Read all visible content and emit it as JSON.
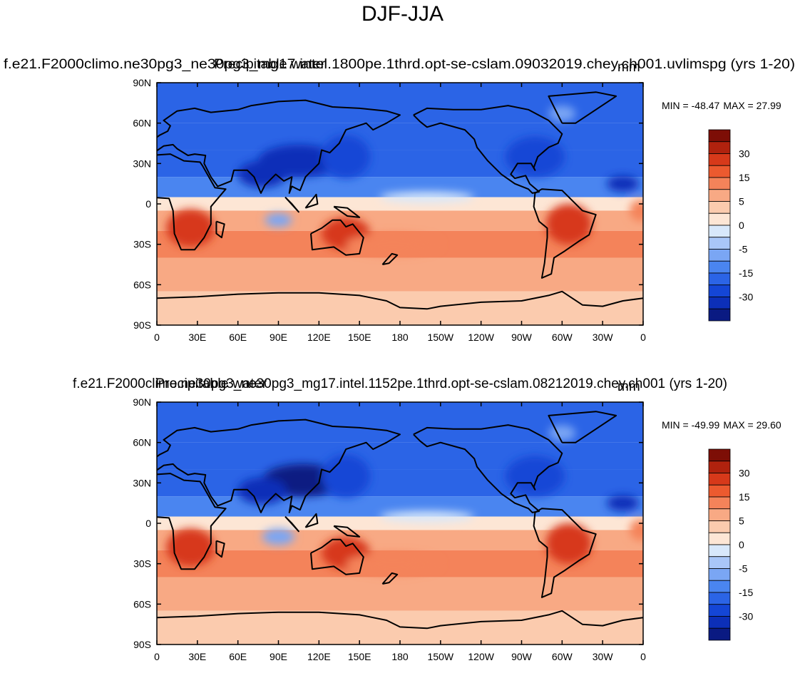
{
  "title": "DJF-JJA",
  "colorbar": {
    "colors": [
      "#0a1a82",
      "#0c2fb8",
      "#1446d6",
      "#2b64e6",
      "#4a85f0",
      "#7aa6f4",
      "#a9c6f8",
      "#d8e8fb",
      "#fde6d5",
      "#fbcbae",
      "#f8a984",
      "#f4835a",
      "#ec5a2f",
      "#d7391a",
      "#b0220e",
      "#7d0e06"
    ],
    "tick_labels": [
      "30",
      "15",
      "5",
      "0",
      "-5",
      "-15",
      "-30"
    ]
  },
  "chart_data": [
    {
      "type": "heatmap",
      "name": "panel-top",
      "left_title": "f.e21.F2000climo.ne30pg3_ne30pg3_mg17.intel.1800pe.1thrd.opt-se-cslam.09032019.chey.ch001.uvlimspg (yrs 1-20)",
      "center_title": "Precipitable water",
      "units": "mm",
      "min_label": "MIN = -48.47",
      "max_label": "MAX =  27.99",
      "x_tick_labels": [
        "0",
        "30E",
        "60E",
        "90E",
        "120E",
        "150E",
        "180",
        "150W",
        "120W",
        "90W",
        "60W",
        "30W",
        "0"
      ],
      "y_tick_labels": [
        "90N",
        "60N",
        "30N",
        "0",
        "30S",
        "60S",
        "90S"
      ],
      "xlim": [
        0,
        360
      ],
      "ylim": [
        -90,
        90
      ],
      "bands": [
        {
          "lat": [
            60,
            90
          ],
          "value": -18
        },
        {
          "lat": [
            40,
            60
          ],
          "value": -16
        },
        {
          "lat": [
            20,
            40
          ],
          "value": -20
        },
        {
          "lat": [
            5,
            20
          ],
          "value": -14
        },
        {
          "lat": [
            -5,
            5
          ],
          "value": 0
        },
        {
          "lat": [
            -20,
            -5
          ],
          "value": 6
        },
        {
          "lat": [
            -40,
            -20
          ],
          "value": 14
        },
        {
          "lat": [
            -65,
            -40
          ],
          "value": 7
        },
        {
          "lat": [
            -90,
            -65
          ],
          "value": 3
        }
      ],
      "features": [
        {
          "lon": 105,
          "lat": 32,
          "rx": 30,
          "ry": 12,
          "value": -40
        },
        {
          "lon": 140,
          "lat": 35,
          "rx": 18,
          "ry": 16,
          "value": -28
        },
        {
          "lon": 78,
          "lat": 22,
          "rx": 18,
          "ry": 10,
          "value": -32
        },
        {
          "lon": 280,
          "lat": 35,
          "rx": 22,
          "ry": 15,
          "value": -30
        },
        {
          "lon": 345,
          "lat": 15,
          "rx": 12,
          "ry": 6,
          "value": -32
        },
        {
          "lon": 300,
          "lat": 67,
          "rx": 10,
          "ry": 6,
          "value": -6
        },
        {
          "lon": 90,
          "lat": -12,
          "rx": 10,
          "ry": 5,
          "value": -7
        },
        {
          "lon": 200,
          "lat": 5,
          "rx": 35,
          "ry": 4,
          "value": -2
        },
        {
          "lon": 25,
          "lat": -18,
          "rx": 18,
          "ry": 14,
          "value": 25
        },
        {
          "lon": 140,
          "lat": -22,
          "rx": 18,
          "ry": 12,
          "value": 22
        },
        {
          "lon": 305,
          "lat": -15,
          "rx": 17,
          "ry": 15,
          "value": 24
        },
        {
          "lon": 175,
          "lat": -30,
          "rx": 35,
          "ry": 8,
          "value": 12
        },
        {
          "lon": 358,
          "lat": -5,
          "rx": 8,
          "ry": 8,
          "value": 14
        }
      ]
    },
    {
      "type": "heatmap",
      "name": "panel-bottom",
      "left_title": "f.e21.F2000climo.ne30pg3_ne30pg3_mg17.intel.1152pe.1thrd.opt-se-cslam.08212019.chey.ch001 (yrs 1-20)",
      "center_title": "Precipitable water",
      "units": "mm",
      "min_label": "MIN = -49.99",
      "max_label": "MAX =  29.60",
      "x_tick_labels": [
        "0",
        "30E",
        "60E",
        "90E",
        "120E",
        "150E",
        "180",
        "150W",
        "120W",
        "90W",
        "60W",
        "30W",
        "0"
      ],
      "y_tick_labels": [
        "90N",
        "60N",
        "30N",
        "0",
        "30S",
        "60S",
        "90S"
      ],
      "xlim": [
        0,
        360
      ],
      "ylim": [
        -90,
        90
      ],
      "bands": [
        {
          "lat": [
            60,
            90
          ],
          "value": -18
        },
        {
          "lat": [
            40,
            60
          ],
          "value": -16
        },
        {
          "lat": [
            20,
            40
          ],
          "value": -20
        },
        {
          "lat": [
            5,
            20
          ],
          "value": -14
        },
        {
          "lat": [
            -5,
            5
          ],
          "value": 0
        },
        {
          "lat": [
            -20,
            -5
          ],
          "value": 6
        },
        {
          "lat": [
            -40,
            -20
          ],
          "value": 14
        },
        {
          "lat": [
            -65,
            -40
          ],
          "value": 7
        },
        {
          "lat": [
            -90,
            -65
          ],
          "value": 3
        }
      ],
      "features": [
        {
          "lon": 108,
          "lat": 32,
          "rx": 30,
          "ry": 12,
          "value": -42
        },
        {
          "lon": 140,
          "lat": 35,
          "rx": 18,
          "ry": 16,
          "value": -28
        },
        {
          "lon": 78,
          "lat": 24,
          "rx": 18,
          "ry": 10,
          "value": -35
        },
        {
          "lon": 280,
          "lat": 35,
          "rx": 22,
          "ry": 15,
          "value": -30
        },
        {
          "lon": 345,
          "lat": 15,
          "rx": 12,
          "ry": 6,
          "value": -32
        },
        {
          "lon": 300,
          "lat": 67,
          "rx": 10,
          "ry": 6,
          "value": -6
        },
        {
          "lon": 90,
          "lat": -10,
          "rx": 12,
          "ry": 6,
          "value": -9
        },
        {
          "lon": 200,
          "lat": 5,
          "rx": 35,
          "ry": 4,
          "value": -2
        },
        {
          "lon": 25,
          "lat": -18,
          "rx": 18,
          "ry": 14,
          "value": 25
        },
        {
          "lon": 140,
          "lat": -22,
          "rx": 18,
          "ry": 12,
          "value": 22
        },
        {
          "lon": 305,
          "lat": -15,
          "rx": 17,
          "ry": 15,
          "value": 24
        },
        {
          "lon": 175,
          "lat": -30,
          "rx": 35,
          "ry": 8,
          "value": 12
        },
        {
          "lon": 358,
          "lat": -5,
          "rx": 8,
          "ry": 8,
          "value": 14
        }
      ]
    }
  ]
}
